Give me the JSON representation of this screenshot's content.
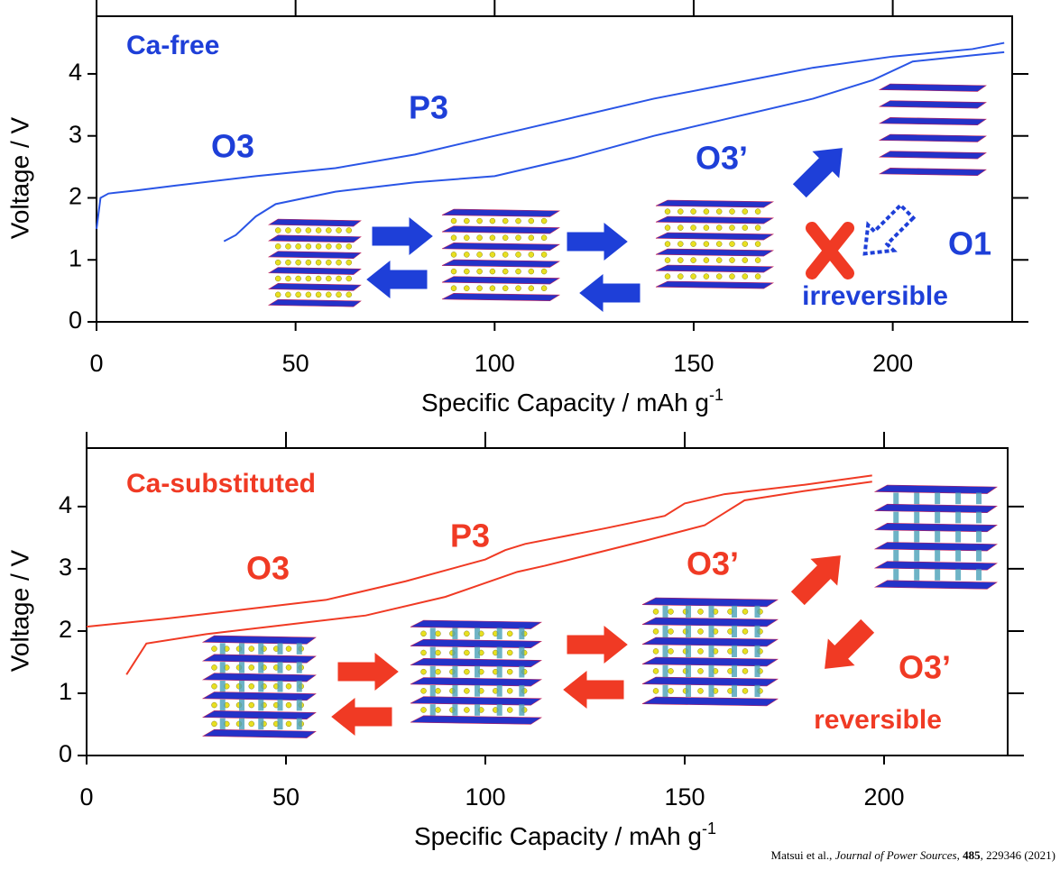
{
  "chart_data": [
    {
      "type": "line",
      "color": "#1e3fd8",
      "x_label": "Specific Capacity / mAh g",
      "x_label_sup": "-1",
      "y_label": "Voltage / V",
      "xlim": [
        0,
        230
      ],
      "ylim": [
        0,
        4.93
      ],
      "xticks": [
        0,
        50,
        100,
        150,
        200
      ],
      "yticks": [
        0,
        1,
        2,
        3,
        4
      ],
      "annotations": [
        "Ca-free",
        "O3",
        "P3",
        "O3’",
        "O1",
        "irreversible"
      ],
      "series": [
        {
          "color": "#2a55e6",
          "x": [
            0,
            1,
            3,
            10,
            20,
            40,
            60,
            80,
            100,
            120,
            140,
            160,
            180,
            200,
            220,
            228
          ],
          "values": [
            1.5,
            2.0,
            2.07,
            2.12,
            2.2,
            2.35,
            2.48,
            2.7,
            3.0,
            3.3,
            3.6,
            3.85,
            4.1,
            4.28,
            4.4,
            4.5
          ]
        },
        {
          "color": "#2a55e6",
          "x": [
            32,
            35,
            40,
            45,
            60,
            80,
            100,
            120,
            140,
            160,
            180,
            195,
            205,
            220,
            228
          ],
          "values": [
            1.3,
            1.4,
            1.7,
            1.9,
            2.1,
            2.25,
            2.35,
            2.65,
            3.0,
            3.3,
            3.6,
            3.9,
            4.2,
            4.3,
            4.35
          ]
        }
      ]
    },
    {
      "type": "line",
      "color": "#f03a24",
      "x_label": "Specific Capacity / mAh g",
      "x_label_sup": "-1",
      "y_label": "Voltage / V",
      "xlim": [
        0,
        231
      ],
      "ylim": [
        0,
        4.94
      ],
      "xticks": [
        0,
        50,
        100,
        150,
        200
      ],
      "yticks": [
        0,
        1,
        2,
        3,
        4
      ],
      "annotations": [
        "Ca-substituted",
        "O3",
        "P3",
        "O3’",
        "O3’",
        "reversible"
      ],
      "series": [
        {
          "color": "#f03a24",
          "x": [
            0,
            20,
            40,
            60,
            80,
            100,
            105,
            110,
            130,
            145,
            150,
            160,
            180,
            197
          ],
          "values": [
            2.07,
            2.2,
            2.35,
            2.5,
            2.8,
            3.15,
            3.3,
            3.4,
            3.65,
            3.85,
            4.05,
            4.2,
            4.35,
            4.5
          ]
        },
        {
          "color": "#f03a24",
          "x": [
            10,
            12,
            15,
            30,
            50,
            70,
            90,
            108,
            115,
            140,
            155,
            160,
            165,
            180,
            197
          ],
          "values": [
            1.3,
            1.5,
            1.8,
            1.95,
            2.1,
            2.25,
            2.55,
            2.95,
            3.05,
            3.45,
            3.7,
            3.9,
            4.1,
            4.25,
            4.4
          ]
        }
      ]
    }
  ],
  "citation": {
    "authors": "Matsui et al., ",
    "journal": "Journal of Power Sources",
    "sep1": ", ",
    "volume": "485",
    "rest": ", 229346 (2021)"
  }
}
